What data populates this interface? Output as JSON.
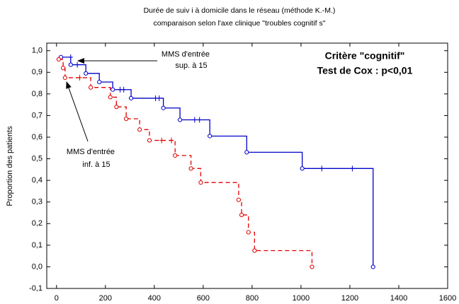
{
  "chart_data": {
    "type": "step",
    "title": "Durée de suiv i à domicile dans le réseau (méthode K.-M.)",
    "subtitle": "comparaison selon l'axe clinique \"troubles cognitif s\"",
    "ylabel": "Proportion des patients",
    "annotations": [
      "MMS d'entrée",
      "sup. à 15",
      "MMS d'entrée",
      "inf. à 15",
      "Critère \"cognitif\"",
      "Test de Cox : p<0,01"
    ],
    "xlim": [
      -40,
      1600
    ],
    "ylim": [
      -0.1,
      1.035
    ],
    "xticks": [
      0,
      200,
      400,
      600,
      800,
      1000,
      1200,
      1400,
      1600
    ],
    "yticks": [
      {
        "value": -0.1,
        "label": "-0,1"
      },
      {
        "value": 0,
        "label": "0,0"
      },
      {
        "value": 0.1,
        "label": "0,1"
      },
      {
        "value": 0.2,
        "label": "0,2"
      },
      {
        "value": 0.3,
        "label": "0,3"
      },
      {
        "value": 0.4,
        "label": "0,4"
      },
      {
        "value": 0.5,
        "label": "0,5"
      },
      {
        "value": 0.6,
        "label": "0,6"
      },
      {
        "value": 0.7,
        "label": "0,7"
      },
      {
        "value": 0.8,
        "label": "0,8"
      },
      {
        "value": 0.9,
        "label": "0,9"
      },
      {
        "value": 1.0,
        "label": "1,0"
      }
    ],
    "series": [
      {
        "color": "#0000cc",
        "dashed": false,
        "x": [
          18,
          58,
          120,
          175,
          230,
          305,
          437,
          505,
          627,
          778,
          1005,
          1295
        ],
        "values": [
          0.97,
          0.935,
          0.895,
          0.855,
          0.82,
          0.78,
          0.735,
          0.68,
          0.605,
          0.53,
          0.455,
          0.0
        ],
        "censor_x": [
          58,
          85,
          260,
          275,
          405,
          420,
          565,
          585,
          1085,
          1210
        ],
        "censor_values": [
          0.97,
          0.935,
          0.82,
          0.82,
          0.78,
          0.78,
          0.68,
          0.68,
          0.455,
          0.455
        ]
      },
      {
        "color": "#e00000",
        "dashed": true,
        "x": [
          9,
          27,
          35,
          140,
          220,
          245,
          285,
          340,
          380,
          485,
          550,
          590,
          745,
          757,
          785,
          810,
          1045
        ],
        "values": [
          0.96,
          0.92,
          0.875,
          0.83,
          0.785,
          0.74,
          0.685,
          0.635,
          0.585,
          0.515,
          0.455,
          0.39,
          0.31,
          0.24,
          0.16,
          0.075,
          0.0
        ],
        "censor_x": [
          95,
          430,
          470
        ],
        "censor_values": [
          0.875,
          0.585,
          0.585
        ]
      }
    ]
  }
}
